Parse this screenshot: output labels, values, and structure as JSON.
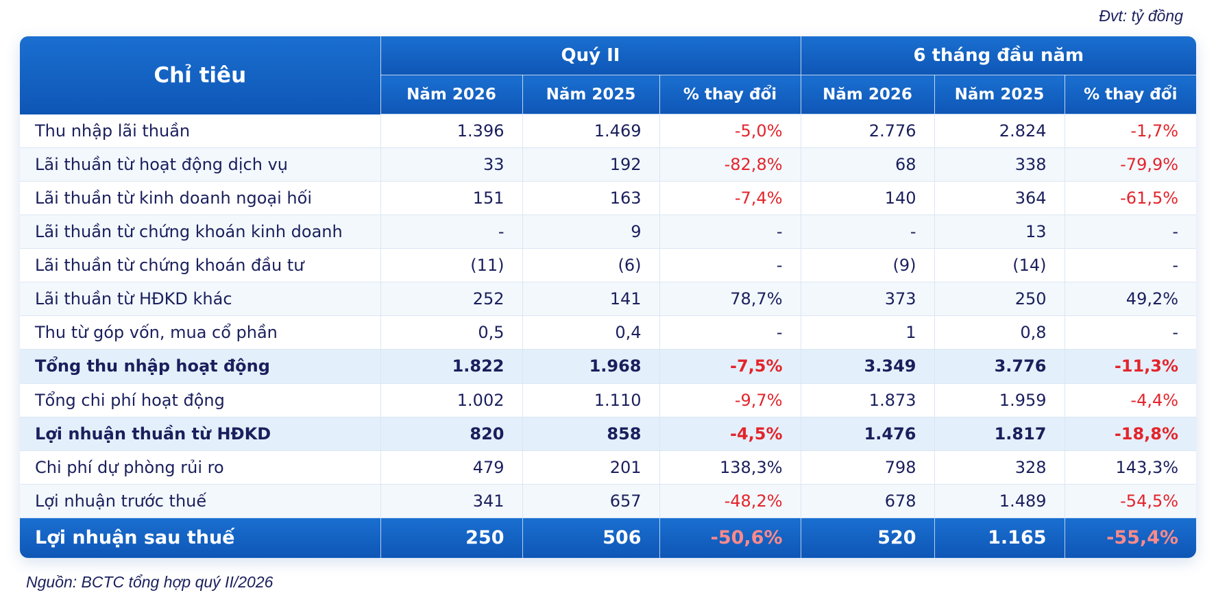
{
  "unit_note": "Đvt: tỷ đồng",
  "source_note": "Nguồn: BCTC tổng hợp quý II/2026",
  "table": {
    "header": {
      "indicator": "Chỉ tiêu",
      "group_q2": "Quý II",
      "group_6m": "6 tháng đầu năm",
      "sub": [
        "Năm 2026",
        "Năm 2025",
        "% thay đổi",
        "Năm 2026",
        "Năm 2025",
        "% thay đổi"
      ]
    },
    "rows": [
      {
        "label": "Thu nhập lãi thuần",
        "values": [
          "1.396",
          "1.469",
          "-5,0%",
          "2.776",
          "2.824",
          "-1,7%"
        ]
      },
      {
        "label": "Lãi thuần từ hoạt động dịch vụ",
        "values": [
          "33",
          "192",
          "-82,8%",
          "68",
          "338",
          "-79,9%"
        ]
      },
      {
        "label": "Lãi thuần từ kinh doanh ngoại hối",
        "values": [
          "151",
          "163",
          "-7,4%",
          "140",
          "364",
          "-61,5%"
        ]
      },
      {
        "label": "Lãi thuần từ chứng khoán kinh doanh",
        "values": [
          "-",
          "9",
          "-",
          "-",
          "13",
          "-"
        ]
      },
      {
        "label": "Lãi thuần từ chứng khoán đầu tư",
        "values": [
          "(11)",
          "(6)",
          "-",
          "(9)",
          "(14)",
          "-"
        ]
      },
      {
        "label": "Lãi thuần từ HĐKD khác",
        "values": [
          "252",
          "141",
          "78,7%",
          "373",
          "250",
          "49,2%"
        ]
      },
      {
        "label": "Thu từ góp vốn, mua cổ phần",
        "values": [
          "0,5",
          "0,4",
          "-",
          "1",
          "0,8",
          "-"
        ]
      },
      {
        "label": "Tổng thu nhập hoạt động",
        "values": [
          "1.822",
          "1.968",
          "-7,5%",
          "3.349",
          "3.776",
          "-11,3%"
        ]
      },
      {
        "label": "Tổng chi phí hoạt động",
        "values": [
          "1.002",
          "1.110",
          "-9,7%",
          "1.873",
          "1.959",
          "-4,4%"
        ]
      },
      {
        "label": "Lợi nhuận thuần từ HĐKD",
        "values": [
          "820",
          "858",
          "-4,5%",
          "1.476",
          "1.817",
          "-18,8%"
        ]
      },
      {
        "label": "Chi phí dự phòng rủi ro",
        "values": [
          "479",
          "201",
          "138,3%",
          "798",
          "328",
          "143,3%"
        ]
      },
      {
        "label": "Lợi nhuận trước thuế",
        "values": [
          "341",
          "657",
          "-48,2%",
          "678",
          "1.489",
          "-54,5%"
        ]
      },
      {
        "label": "Lợi nhuận sau thuế",
        "values": [
          "250",
          "506",
          "-50,6%",
          "520",
          "1.165",
          "-55,4%"
        ]
      }
    ]
  },
  "colors": {
    "header_blue": "#1565c8",
    "negative_red": "#e3242b",
    "text_navy": "#1a1f5c"
  }
}
